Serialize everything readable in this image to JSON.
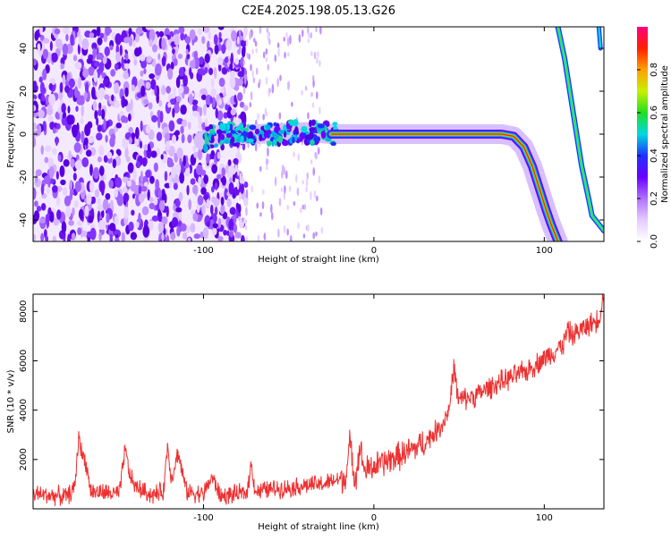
{
  "figure": {
    "title": "C2E4.2025.198.05.13.G26"
  },
  "chart_data": [
    {
      "type": "heatmap",
      "xlabel": "Height of straight line (km)",
      "ylabel": "Frequency (Hz)",
      "xlim": [
        -200,
        135
      ],
      "ylim": [
        -50,
        50
      ],
      "x_ticks": [
        -100,
        0,
        100
      ],
      "y_ticks": [
        -40,
        -20,
        0,
        20,
        40
      ],
      "grid": false,
      "colorbar": {
        "label": "Normalized spectral amplitude",
        "range": [
          0,
          1
        ],
        "ticks": [
          0,
          0.2,
          0.4,
          0.6,
          0.8
        ],
        "colors": [
          "#ffffff",
          "#e6ccff",
          "#b070ff",
          "#6a00ff",
          "#2030ff",
          "#00d8e0",
          "#20e020",
          "#c8f000",
          "#ffa000",
          "#ff2000",
          "#ff0080"
        ]
      },
      "features": {
        "noise_region_x": [
          -200,
          -80
        ],
        "noise_sparse_region_x": [
          -80,
          -30
        ],
        "main_signal": [
          [
            -100,
            -3
          ],
          [
            -90,
            0
          ],
          [
            -70,
            0
          ],
          [
            -40,
            1
          ],
          [
            -25,
            0
          ],
          [
            0,
            0
          ],
          [
            20,
            0
          ],
          [
            50,
            0
          ],
          [
            75,
            0
          ],
          [
            82,
            -1
          ],
          [
            88,
            -6
          ],
          [
            93,
            -15
          ],
          [
            97,
            -25
          ],
          [
            101,
            -35
          ],
          [
            104,
            -42
          ],
          [
            108,
            -50
          ]
        ],
        "upper_line": [
          [
            108,
            50
          ],
          [
            112,
            35
          ],
          [
            117,
            10
          ],
          [
            122,
            -15
          ],
          [
            126,
            -30
          ],
          [
            128,
            -38
          ],
          [
            132,
            -42
          ],
          [
            135,
            -45
          ]
        ],
        "right_edge_line": [
          [
            132,
            50
          ],
          [
            133,
            40
          ]
        ]
      }
    },
    {
      "type": "line",
      "xlabel": "Height of straight line (km)",
      "ylabel": "SNR (10 * v/v)",
      "xlim": [
        -200,
        135
      ],
      "ylim": [
        0,
        8700
      ],
      "x_ticks": [
        -100,
        0,
        100
      ],
      "y_ticks": [
        2000,
        4000,
        6000,
        8000
      ],
      "grid": false,
      "color": "#ee3030",
      "series": [
        {
          "values_trend": [
            [
              -200,
              600
            ],
            [
              -180,
              500
            ],
            [
              -175,
              900
            ],
            [
              -170,
              2200
            ],
            [
              -166,
              700
            ],
            [
              -150,
              600
            ],
            [
              -145,
              1600
            ],
            [
              -140,
              900
            ],
            [
              -130,
              550
            ],
            [
              -120,
              800
            ],
            [
              -115,
              2300
            ],
            [
              -110,
              700
            ],
            [
              -100,
              600
            ],
            [
              -95,
              1300
            ],
            [
              -90,
              500
            ],
            [
              -80,
              600
            ],
            [
              -70,
              700
            ],
            [
              -60,
              800
            ],
            [
              -50,
              850
            ],
            [
              -40,
              950
            ],
            [
              -30,
              1000
            ],
            [
              -20,
              1200
            ],
            [
              -10,
              1400
            ],
            [
              0,
              1700
            ],
            [
              10,
              2000
            ],
            [
              20,
              2300
            ],
            [
              30,
              2700
            ],
            [
              40,
              3400
            ],
            [
              45,
              4200
            ],
            [
              50,
              4400
            ],
            [
              60,
              4600
            ],
            [
              70,
              5000
            ],
            [
              80,
              5300
            ],
            [
              90,
              5600
            ],
            [
              100,
              6100
            ],
            [
              110,
              6600
            ],
            [
              120,
              7200
            ],
            [
              130,
              7600
            ],
            [
              135,
              8000
            ]
          ],
          "spikes": [
            [
              -173,
              3000
            ],
            [
              -146,
              2400
            ],
            [
              -121,
              2600
            ],
            [
              -72,
              1800
            ],
            [
              -14,
              2700
            ],
            [
              -8,
              2500
            ],
            [
              47,
              5800
            ],
            [
              114,
              7300
            ],
            [
              135,
              8700
            ]
          ]
        }
      ]
    }
  ]
}
